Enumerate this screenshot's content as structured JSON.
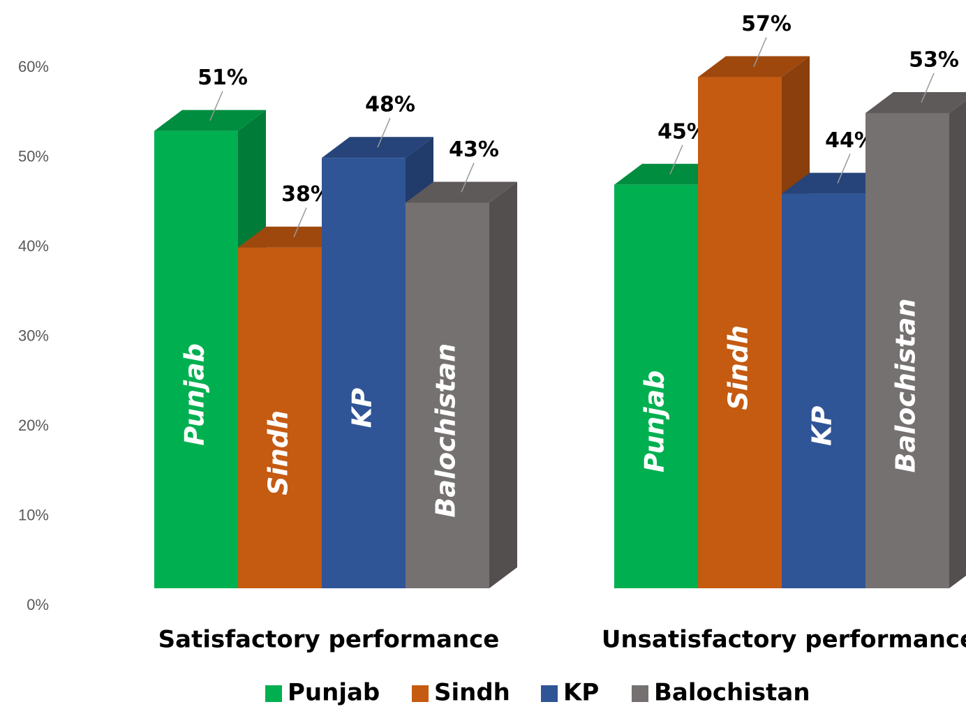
{
  "chart_data": {
    "type": "bar3d",
    "categories": [
      "Satisfactory performance",
      "Unsatisfactory performance"
    ],
    "series": [
      {
        "name": "Punjab",
        "color": "#00b050",
        "values": [
          51,
          45
        ],
        "value_labels": [
          "51%",
          "45%"
        ]
      },
      {
        "name": "Sindh",
        "color": "#c55a11",
        "values": [
          38,
          57
        ],
        "value_labels": [
          "38%",
          "57%"
        ]
      },
      {
        "name": "KP",
        "color": "#2f5597",
        "values": [
          48,
          44
        ],
        "value_labels": [
          "48%",
          "44%"
        ]
      },
      {
        "name": "Balochistan",
        "color": "#767171",
        "values": [
          43,
          53
        ],
        "value_labels": [
          "43%",
          "53%"
        ]
      }
    ],
    "ylim": [
      0,
      60
    ],
    "yticks": [
      {
        "value": 0,
        "label": "0%"
      },
      {
        "value": 10,
        "label": "10%"
      },
      {
        "value": 20,
        "label": "20%"
      },
      {
        "value": 30,
        "label": "30%"
      },
      {
        "value": 40,
        "label": "40%"
      },
      {
        "value": 50,
        "label": "50%"
      },
      {
        "value": 60,
        "label": "60%"
      }
    ],
    "legend": "bottom"
  }
}
